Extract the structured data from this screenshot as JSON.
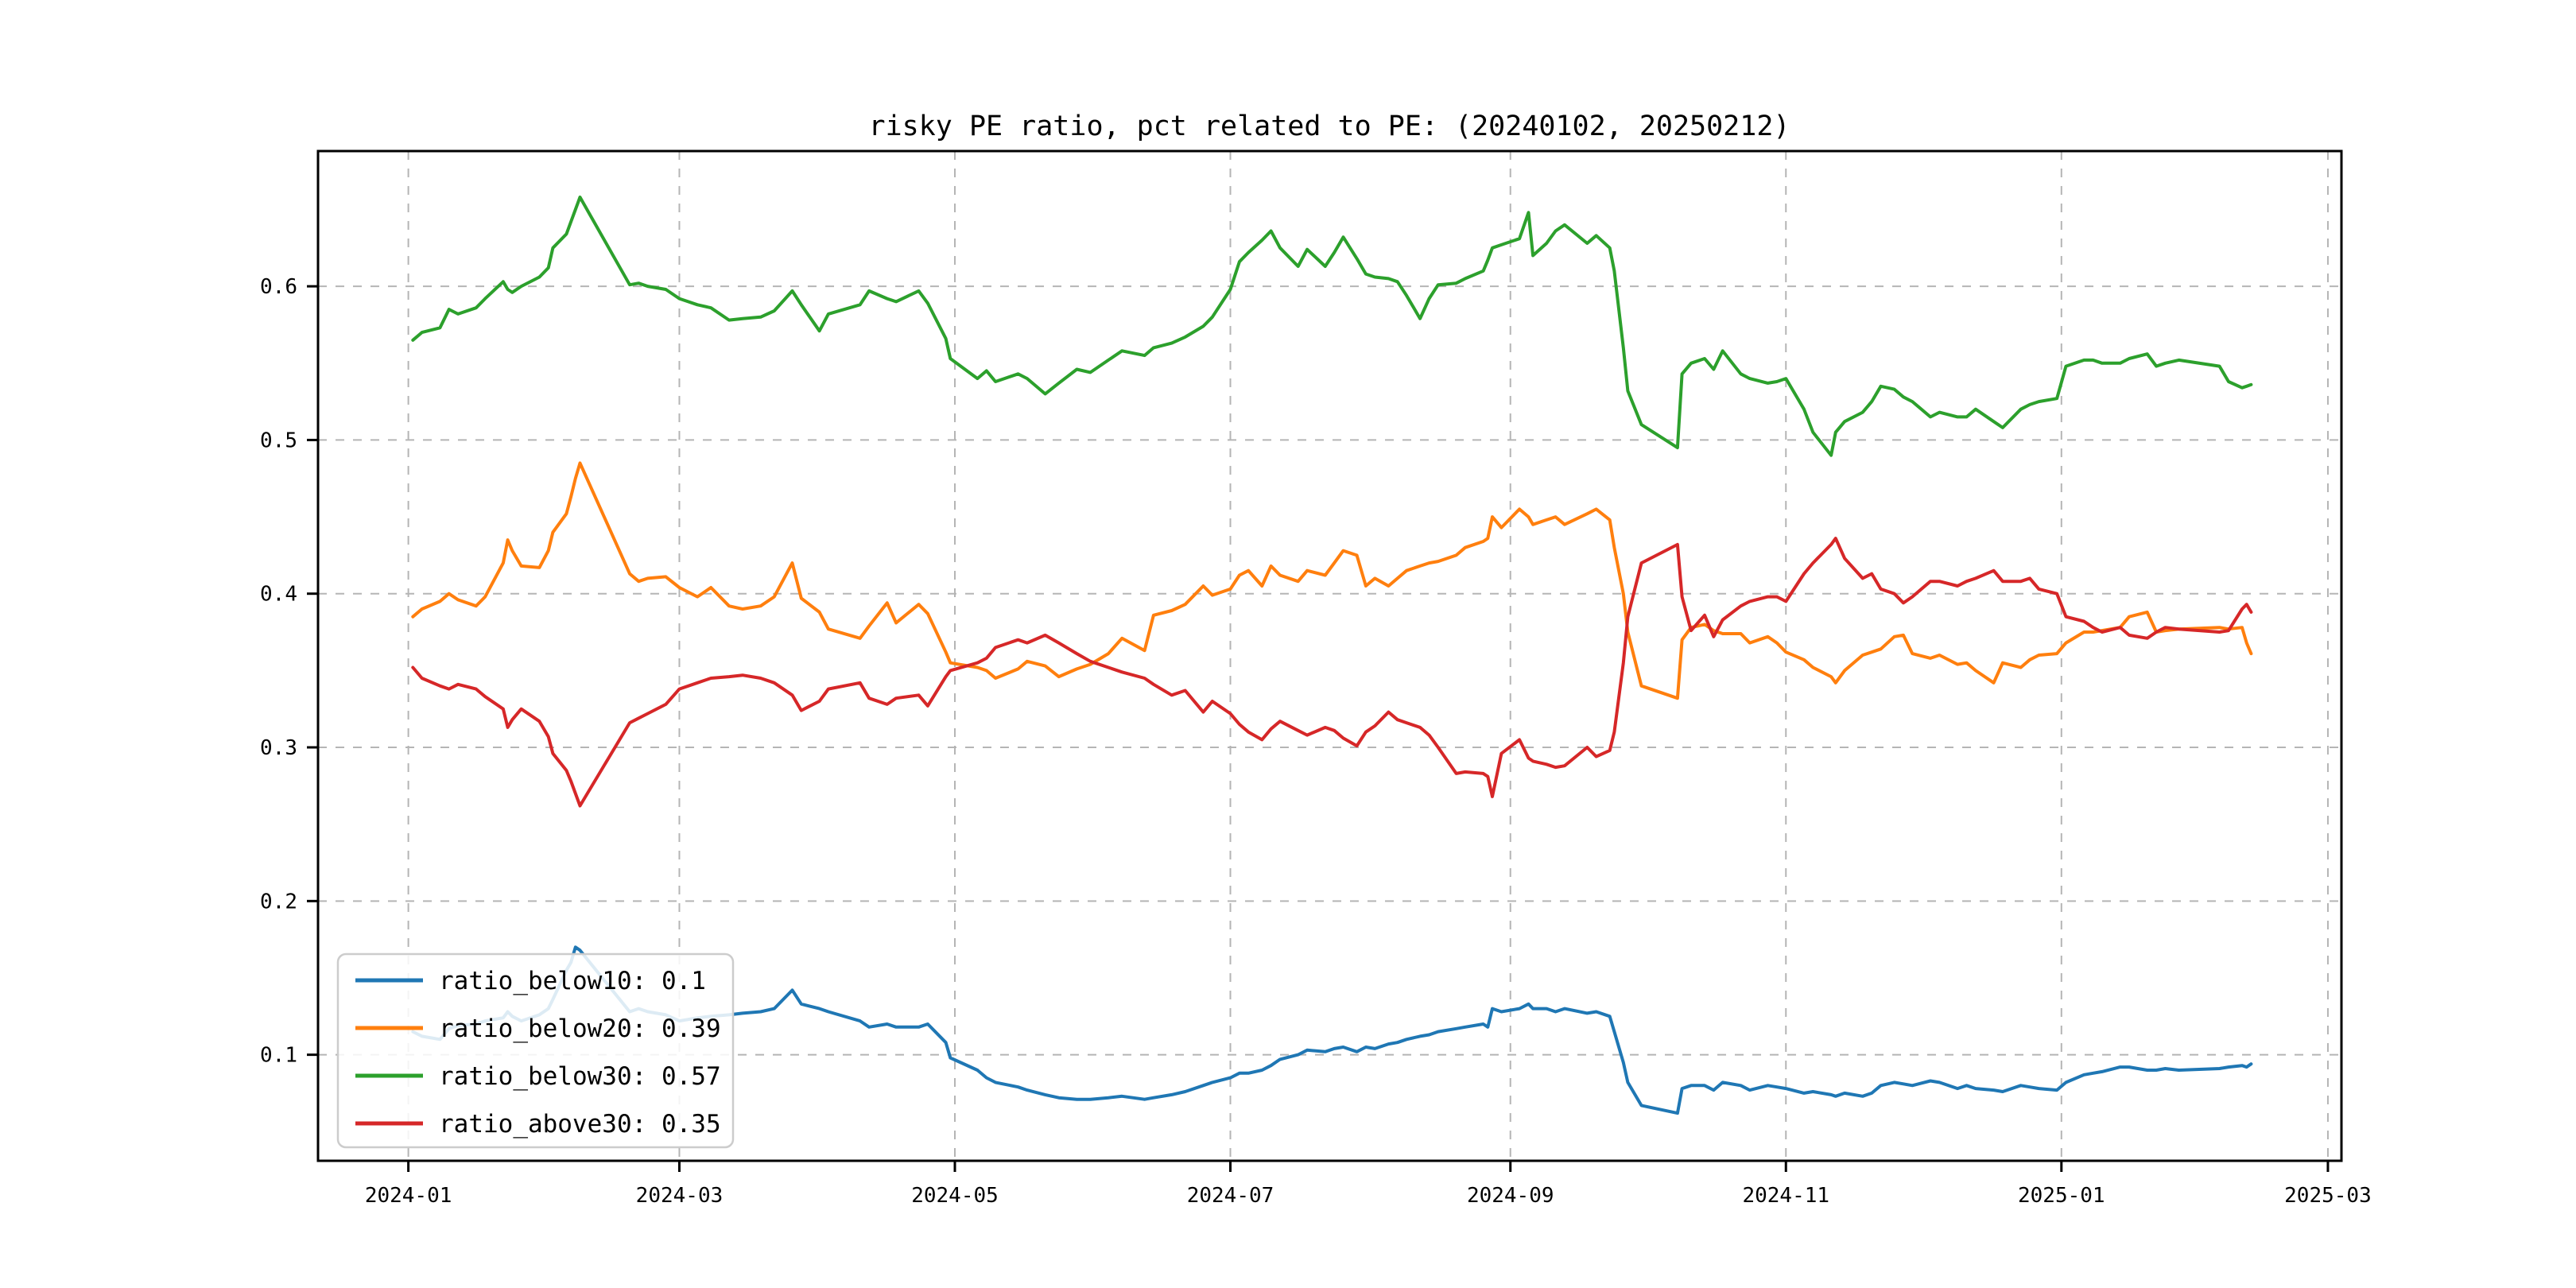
{
  "figure": {
    "background": "#ffffff"
  },
  "chart_data": {
    "type": "line",
    "title": "risky PE ratio, pct related to PE: (20240102, 20250212)",
    "xlabel": "",
    "ylabel": "",
    "grid": true,
    "legend_position": "lower left",
    "xlim": [
      "2023-12-12",
      "2025-03-04"
    ],
    "ylim": [
      0.031,
      0.688
    ],
    "yticks": [
      {
        "value": 0.1,
        "label": "0.1"
      },
      {
        "value": 0.2,
        "label": "0.2"
      },
      {
        "value": 0.3,
        "label": "0.3"
      },
      {
        "value": 0.4,
        "label": "0.4"
      },
      {
        "value": 0.5,
        "label": "0.5"
      },
      {
        "value": 0.6,
        "label": "0.6"
      }
    ],
    "xticks": [
      {
        "label": "2024-01",
        "date": "2024-01-01"
      },
      {
        "label": "2024-03",
        "date": "2024-03-01"
      },
      {
        "label": "2024-05",
        "date": "2024-05-01"
      },
      {
        "label": "2024-07",
        "date": "2024-07-01"
      },
      {
        "label": "2024-09",
        "date": "2024-09-01"
      },
      {
        "label": "2024-11",
        "date": "2024-11-01"
      },
      {
        "label": "2025-01",
        "date": "2025-01-01"
      },
      {
        "label": "2025-03",
        "date": "2025-03-01"
      }
    ],
    "x": [
      "2024-01-02",
      "2024-01-04",
      "2024-01-08",
      "2024-01-10",
      "2024-01-12",
      "2024-01-16",
      "2024-01-18",
      "2024-01-22",
      "2024-01-23",
      "2024-01-24",
      "2024-01-26",
      "2024-01-30",
      "2024-02-01",
      "2024-02-02",
      "2024-02-05",
      "2024-02-06",
      "2024-02-07",
      "2024-02-08",
      "2024-02-19",
      "2024-02-21",
      "2024-02-23",
      "2024-02-27",
      "2024-03-01",
      "2024-03-05",
      "2024-03-08",
      "2024-03-12",
      "2024-03-15",
      "2024-03-19",
      "2024-03-22",
      "2024-03-26",
      "2024-03-28",
      "2024-04-01",
      "2024-04-03",
      "2024-04-10",
      "2024-04-12",
      "2024-04-16",
      "2024-04-18",
      "2024-04-23",
      "2024-04-25",
      "2024-04-29",
      "2024-04-30",
      "2024-05-06",
      "2024-05-08",
      "2024-05-10",
      "2024-05-15",
      "2024-05-17",
      "2024-05-21",
      "2024-05-24",
      "2024-05-28",
      "2024-05-31",
      "2024-06-04",
      "2024-06-07",
      "2024-06-12",
      "2024-06-14",
      "2024-06-18",
      "2024-06-21",
      "2024-06-25",
      "2024-06-27",
      "2024-07-01",
      "2024-07-03",
      "2024-07-05",
      "2024-07-08",
      "2024-07-10",
      "2024-07-12",
      "2024-07-16",
      "2024-07-18",
      "2024-07-22",
      "2024-07-24",
      "2024-07-26",
      "2024-07-29",
      "2024-07-31",
      "2024-08-02",
      "2024-08-05",
      "2024-08-07",
      "2024-08-09",
      "2024-08-12",
      "2024-08-14",
      "2024-08-16",
      "2024-08-20",
      "2024-08-22",
      "2024-08-26",
      "2024-08-27",
      "2024-08-28",
      "2024-08-30",
      "2024-09-03",
      "2024-09-05",
      "2024-09-06",
      "2024-09-09",
      "2024-09-11",
      "2024-09-13",
      "2024-09-18",
      "2024-09-20",
      "2024-09-23",
      "2024-09-24",
      "2024-09-26",
      "2024-09-27",
      "2024-09-30",
      "2024-10-08",
      "2024-10-09",
      "2024-10-11",
      "2024-10-14",
      "2024-10-16",
      "2024-10-18",
      "2024-10-22",
      "2024-10-24",
      "2024-10-28",
      "2024-10-30",
      "2024-11-01",
      "2024-11-05",
      "2024-11-07",
      "2024-11-11",
      "2024-11-12",
      "2024-11-14",
      "2024-11-18",
      "2024-11-20",
      "2024-11-22",
      "2024-11-25",
      "2024-11-27",
      "2024-11-29",
      "2024-12-03",
      "2024-12-05",
      "2024-12-09",
      "2024-12-11",
      "2024-12-13",
      "2024-12-17",
      "2024-12-19",
      "2024-12-23",
      "2024-12-25",
      "2024-12-27",
      "2024-12-31",
      "2025-01-02",
      "2025-01-06",
      "2025-01-08",
      "2025-01-10",
      "2025-01-14",
      "2025-01-16",
      "2025-01-20",
      "2025-01-22",
      "2025-01-24",
      "2025-01-27",
      "2025-02-05",
      "2025-02-07",
      "2025-02-10",
      "2025-02-11",
      "2025-02-12"
    ],
    "series": [
      {
        "name": "ratio_below10",
        "label": "ratio_below10: 0.1",
        "color": "#1f77b4",
        "values": [
          0.115,
          0.112,
          0.11,
          0.117,
          0.119,
          0.12,
          0.122,
          0.124,
          0.128,
          0.125,
          0.122,
          0.126,
          0.13,
          0.136,
          0.155,
          0.16,
          0.17,
          0.168,
          0.128,
          0.13,
          0.128,
          0.126,
          0.122,
          0.124,
          0.125,
          0.126,
          0.127,
          0.128,
          0.13,
          0.142,
          0.133,
          0.13,
          0.128,
          0.122,
          0.118,
          0.12,
          0.118,
          0.118,
          0.12,
          0.108,
          0.098,
          0.09,
          0.085,
          0.082,
          0.079,
          0.077,
          0.074,
          0.072,
          0.071,
          0.071,
          0.072,
          0.073,
          0.071,
          0.072,
          0.074,
          0.076,
          0.08,
          0.082,
          0.085,
          0.088,
          0.088,
          0.09,
          0.093,
          0.097,
          0.1,
          0.103,
          0.102,
          0.104,
          0.105,
          0.102,
          0.105,
          0.104,
          0.107,
          0.108,
          0.11,
          0.112,
          0.113,
          0.115,
          0.117,
          0.118,
          0.12,
          0.118,
          0.13,
          0.128,
          0.13,
          0.133,
          0.13,
          0.13,
          0.128,
          0.13,
          0.127,
          0.128,
          0.125,
          0.115,
          0.095,
          0.082,
          0.067,
          0.062,
          0.078,
          0.08,
          0.08,
          0.077,
          0.082,
          0.08,
          0.077,
          0.08,
          0.079,
          0.078,
          0.075,
          0.076,
          0.074,
          0.073,
          0.075,
          0.073,
          0.075,
          0.08,
          0.082,
          0.081,
          0.08,
          0.083,
          0.082,
          0.078,
          0.08,
          0.078,
          0.077,
          0.076,
          0.08,
          0.079,
          0.078,
          0.077,
          0.082,
          0.087,
          0.088,
          0.089,
          0.092,
          0.092,
          0.09,
          0.09,
          0.091,
          0.09,
          0.091,
          0.092,
          0.093,
          0.092,
          0.094
        ]
      },
      {
        "name": "ratio_below20",
        "label": "ratio_below20: 0.39",
        "color": "#ff7f0e",
        "values": [
          0.385,
          0.39,
          0.395,
          0.4,
          0.396,
          0.392,
          0.398,
          0.42,
          0.435,
          0.428,
          0.418,
          0.417,
          0.428,
          0.44,
          0.452,
          0.463,
          0.475,
          0.485,
          0.413,
          0.408,
          0.41,
          0.411,
          0.404,
          0.398,
          0.404,
          0.392,
          0.39,
          0.392,
          0.398,
          0.42,
          0.397,
          0.388,
          0.377,
          0.371,
          0.379,
          0.394,
          0.381,
          0.393,
          0.387,
          0.362,
          0.355,
          0.352,
          0.35,
          0.345,
          0.351,
          0.356,
          0.353,
          0.346,
          0.351,
          0.354,
          0.361,
          0.371,
          0.363,
          0.386,
          0.389,
          0.393,
          0.405,
          0.399,
          0.403,
          0.412,
          0.415,
          0.405,
          0.418,
          0.412,
          0.408,
          0.415,
          0.412,
          0.42,
          0.428,
          0.425,
          0.405,
          0.41,
          0.405,
          0.41,
          0.415,
          0.418,
          0.42,
          0.421,
          0.425,
          0.43,
          0.434,
          0.436,
          0.45,
          0.443,
          0.455,
          0.45,
          0.445,
          0.448,
          0.45,
          0.445,
          0.452,
          0.455,
          0.448,
          0.43,
          0.4,
          0.375,
          0.34,
          0.332,
          0.37,
          0.378,
          0.38,
          0.376,
          0.374,
          0.374,
          0.368,
          0.372,
          0.368,
          0.362,
          0.357,
          0.352,
          0.346,
          0.342,
          0.35,
          0.36,
          0.362,
          0.364,
          0.372,
          0.373,
          0.361,
          0.358,
          0.36,
          0.354,
          0.355,
          0.35,
          0.342,
          0.355,
          0.352,
          0.357,
          0.36,
          0.361,
          0.368,
          0.375,
          0.375,
          0.376,
          0.378,
          0.385,
          0.388,
          0.375,
          0.376,
          0.377,
          0.378,
          0.377,
          0.378,
          0.368,
          0.361
        ]
      },
      {
        "name": "ratio_below30",
        "label": "ratio_below30: 0.57",
        "color": "#2ca02c",
        "values": [
          0.565,
          0.57,
          0.573,
          0.585,
          0.582,
          0.586,
          0.592,
          0.603,
          0.598,
          0.596,
          0.6,
          0.606,
          0.612,
          0.625,
          0.634,
          0.642,
          0.65,
          0.658,
          0.601,
          0.602,
          0.6,
          0.598,
          0.592,
          0.588,
          0.586,
          0.578,
          0.579,
          0.58,
          0.584,
          0.597,
          0.588,
          0.571,
          0.582,
          0.588,
          0.597,
          0.592,
          0.59,
          0.597,
          0.589,
          0.566,
          0.553,
          0.54,
          0.545,
          0.538,
          0.543,
          0.54,
          0.53,
          0.537,
          0.546,
          0.544,
          0.552,
          0.558,
          0.555,
          0.56,
          0.563,
          0.567,
          0.574,
          0.58,
          0.598,
          0.616,
          0.622,
          0.63,
          0.636,
          0.625,
          0.613,
          0.624,
          0.613,
          0.622,
          0.632,
          0.618,
          0.608,
          0.606,
          0.605,
          0.603,
          0.594,
          0.579,
          0.592,
          0.601,
          0.602,
          0.605,
          0.61,
          0.617,
          0.625,
          0.627,
          0.631,
          0.648,
          0.62,
          0.628,
          0.636,
          0.64,
          0.628,
          0.633,
          0.625,
          0.61,
          0.56,
          0.532,
          0.51,
          0.495,
          0.543,
          0.55,
          0.553,
          0.546,
          0.558,
          0.543,
          0.54,
          0.537,
          0.538,
          0.54,
          0.52,
          0.505,
          0.49,
          0.505,
          0.512,
          0.518,
          0.525,
          0.535,
          0.533,
          0.528,
          0.525,
          0.515,
          0.518,
          0.515,
          0.515,
          0.52,
          0.512,
          0.508,
          0.52,
          0.523,
          0.525,
          0.527,
          0.548,
          0.552,
          0.552,
          0.55,
          0.55,
          0.553,
          0.556,
          0.548,
          0.55,
          0.552,
          0.548,
          0.538,
          0.534,
          0.535,
          0.536
        ]
      },
      {
        "name": "ratio_above30",
        "label": "ratio_above30: 0.35",
        "color": "#d62728",
        "values": [
          0.352,
          0.345,
          0.34,
          0.338,
          0.341,
          0.338,
          0.333,
          0.325,
          0.313,
          0.318,
          0.325,
          0.317,
          0.307,
          0.296,
          0.285,
          0.278,
          0.27,
          0.262,
          0.316,
          0.319,
          0.322,
          0.328,
          0.338,
          0.342,
          0.345,
          0.346,
          0.347,
          0.345,
          0.342,
          0.334,
          0.324,
          0.33,
          0.338,
          0.342,
          0.332,
          0.328,
          0.332,
          0.334,
          0.327,
          0.346,
          0.35,
          0.355,
          0.358,
          0.365,
          0.37,
          0.368,
          0.373,
          0.368,
          0.361,
          0.356,
          0.352,
          0.349,
          0.345,
          0.341,
          0.334,
          0.337,
          0.323,
          0.33,
          0.322,
          0.315,
          0.31,
          0.305,
          0.312,
          0.317,
          0.311,
          0.308,
          0.313,
          0.311,
          0.306,
          0.301,
          0.31,
          0.314,
          0.323,
          0.318,
          0.316,
          0.313,
          0.308,
          0.3,
          0.283,
          0.284,
          0.283,
          0.281,
          0.268,
          0.296,
          0.305,
          0.293,
          0.291,
          0.289,
          0.287,
          0.288,
          0.3,
          0.294,
          0.298,
          0.31,
          0.355,
          0.385,
          0.42,
          0.432,
          0.398,
          0.376,
          0.386,
          0.372,
          0.383,
          0.392,
          0.395,
          0.398,
          0.398,
          0.395,
          0.413,
          0.42,
          0.432,
          0.436,
          0.423,
          0.41,
          0.413,
          0.403,
          0.4,
          0.394,
          0.398,
          0.408,
          0.408,
          0.405,
          0.408,
          0.41,
          0.415,
          0.408,
          0.408,
          0.41,
          0.403,
          0.4,
          0.385,
          0.382,
          0.378,
          0.375,
          0.378,
          0.373,
          0.371,
          0.375,
          0.378,
          0.377,
          0.375,
          0.376,
          0.39,
          0.393,
          0.388
        ]
      }
    ]
  }
}
